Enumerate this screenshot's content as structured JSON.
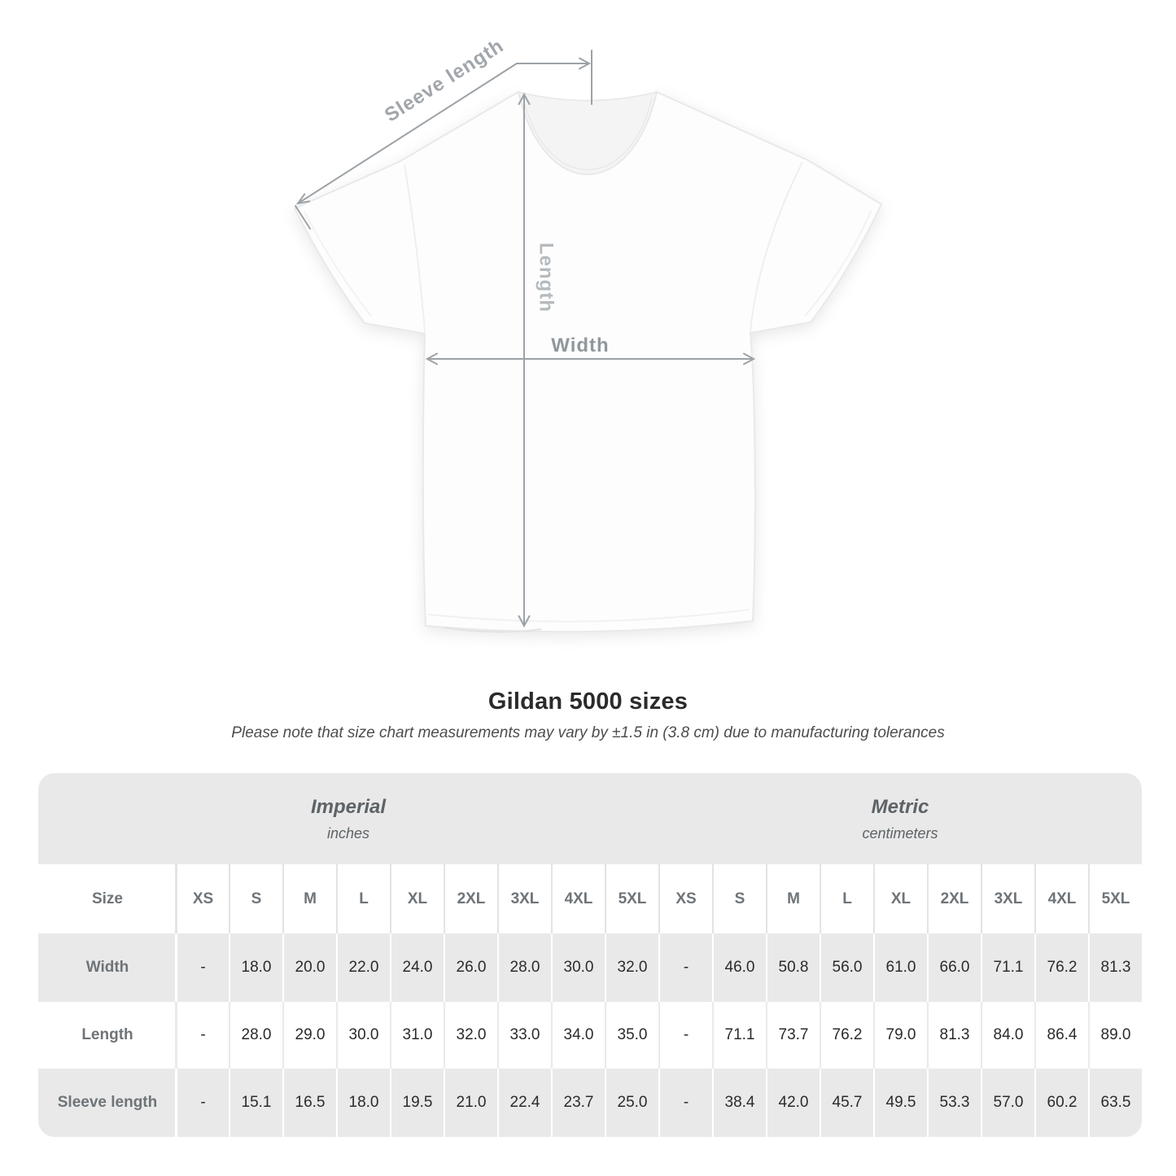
{
  "diagram": {
    "sleeve_length_label": "Sleeve length",
    "length_label": "Length",
    "width_label": "Width",
    "annotation_color": "#9ca2a7"
  },
  "title_block": {
    "title": "Gildan 5000 sizes",
    "subtitle": "Please note that size chart measurements may vary by ±1.5 in (3.8 cm) due to manufacturing tolerances"
  },
  "chart_data": {
    "type": "table",
    "title": "Gildan 5000 sizes",
    "subtitle": "Please note that size chart measurements may vary by ±1.5 in (3.8 cm) due to manufacturing tolerances",
    "groups": [
      {
        "title": "Imperial",
        "unit": "inches"
      },
      {
        "title": "Metric",
        "unit": "centimeters"
      }
    ],
    "size_header": "Size",
    "sizes": [
      "XS",
      "S",
      "M",
      "L",
      "XL",
      "2XL",
      "3XL",
      "4XL",
      "5XL"
    ],
    "rows": [
      {
        "label": "Width",
        "imperial": [
          "-",
          "18.0",
          "20.0",
          "22.0",
          "24.0",
          "26.0",
          "28.0",
          "30.0",
          "32.0"
        ],
        "metric": [
          "-",
          "46.0",
          "50.8",
          "56.0",
          "61.0",
          "66.0",
          "71.1",
          "76.2",
          "81.3"
        ]
      },
      {
        "label": "Length",
        "imperial": [
          "-",
          "28.0",
          "29.0",
          "30.0",
          "31.0",
          "32.0",
          "33.0",
          "34.0",
          "35.0"
        ],
        "metric": [
          "-",
          "71.1",
          "73.7",
          "76.2",
          "79.0",
          "81.3",
          "84.0",
          "86.4",
          "89.0"
        ]
      },
      {
        "label": "Sleeve length",
        "imperial": [
          "-",
          "15.1",
          "16.5",
          "18.0",
          "19.5",
          "21.0",
          "22.4",
          "23.7",
          "25.0"
        ],
        "metric": [
          "-",
          "38.4",
          "42.0",
          "45.7",
          "49.5",
          "53.3",
          "57.0",
          "60.2",
          "63.5"
        ]
      }
    ]
  }
}
